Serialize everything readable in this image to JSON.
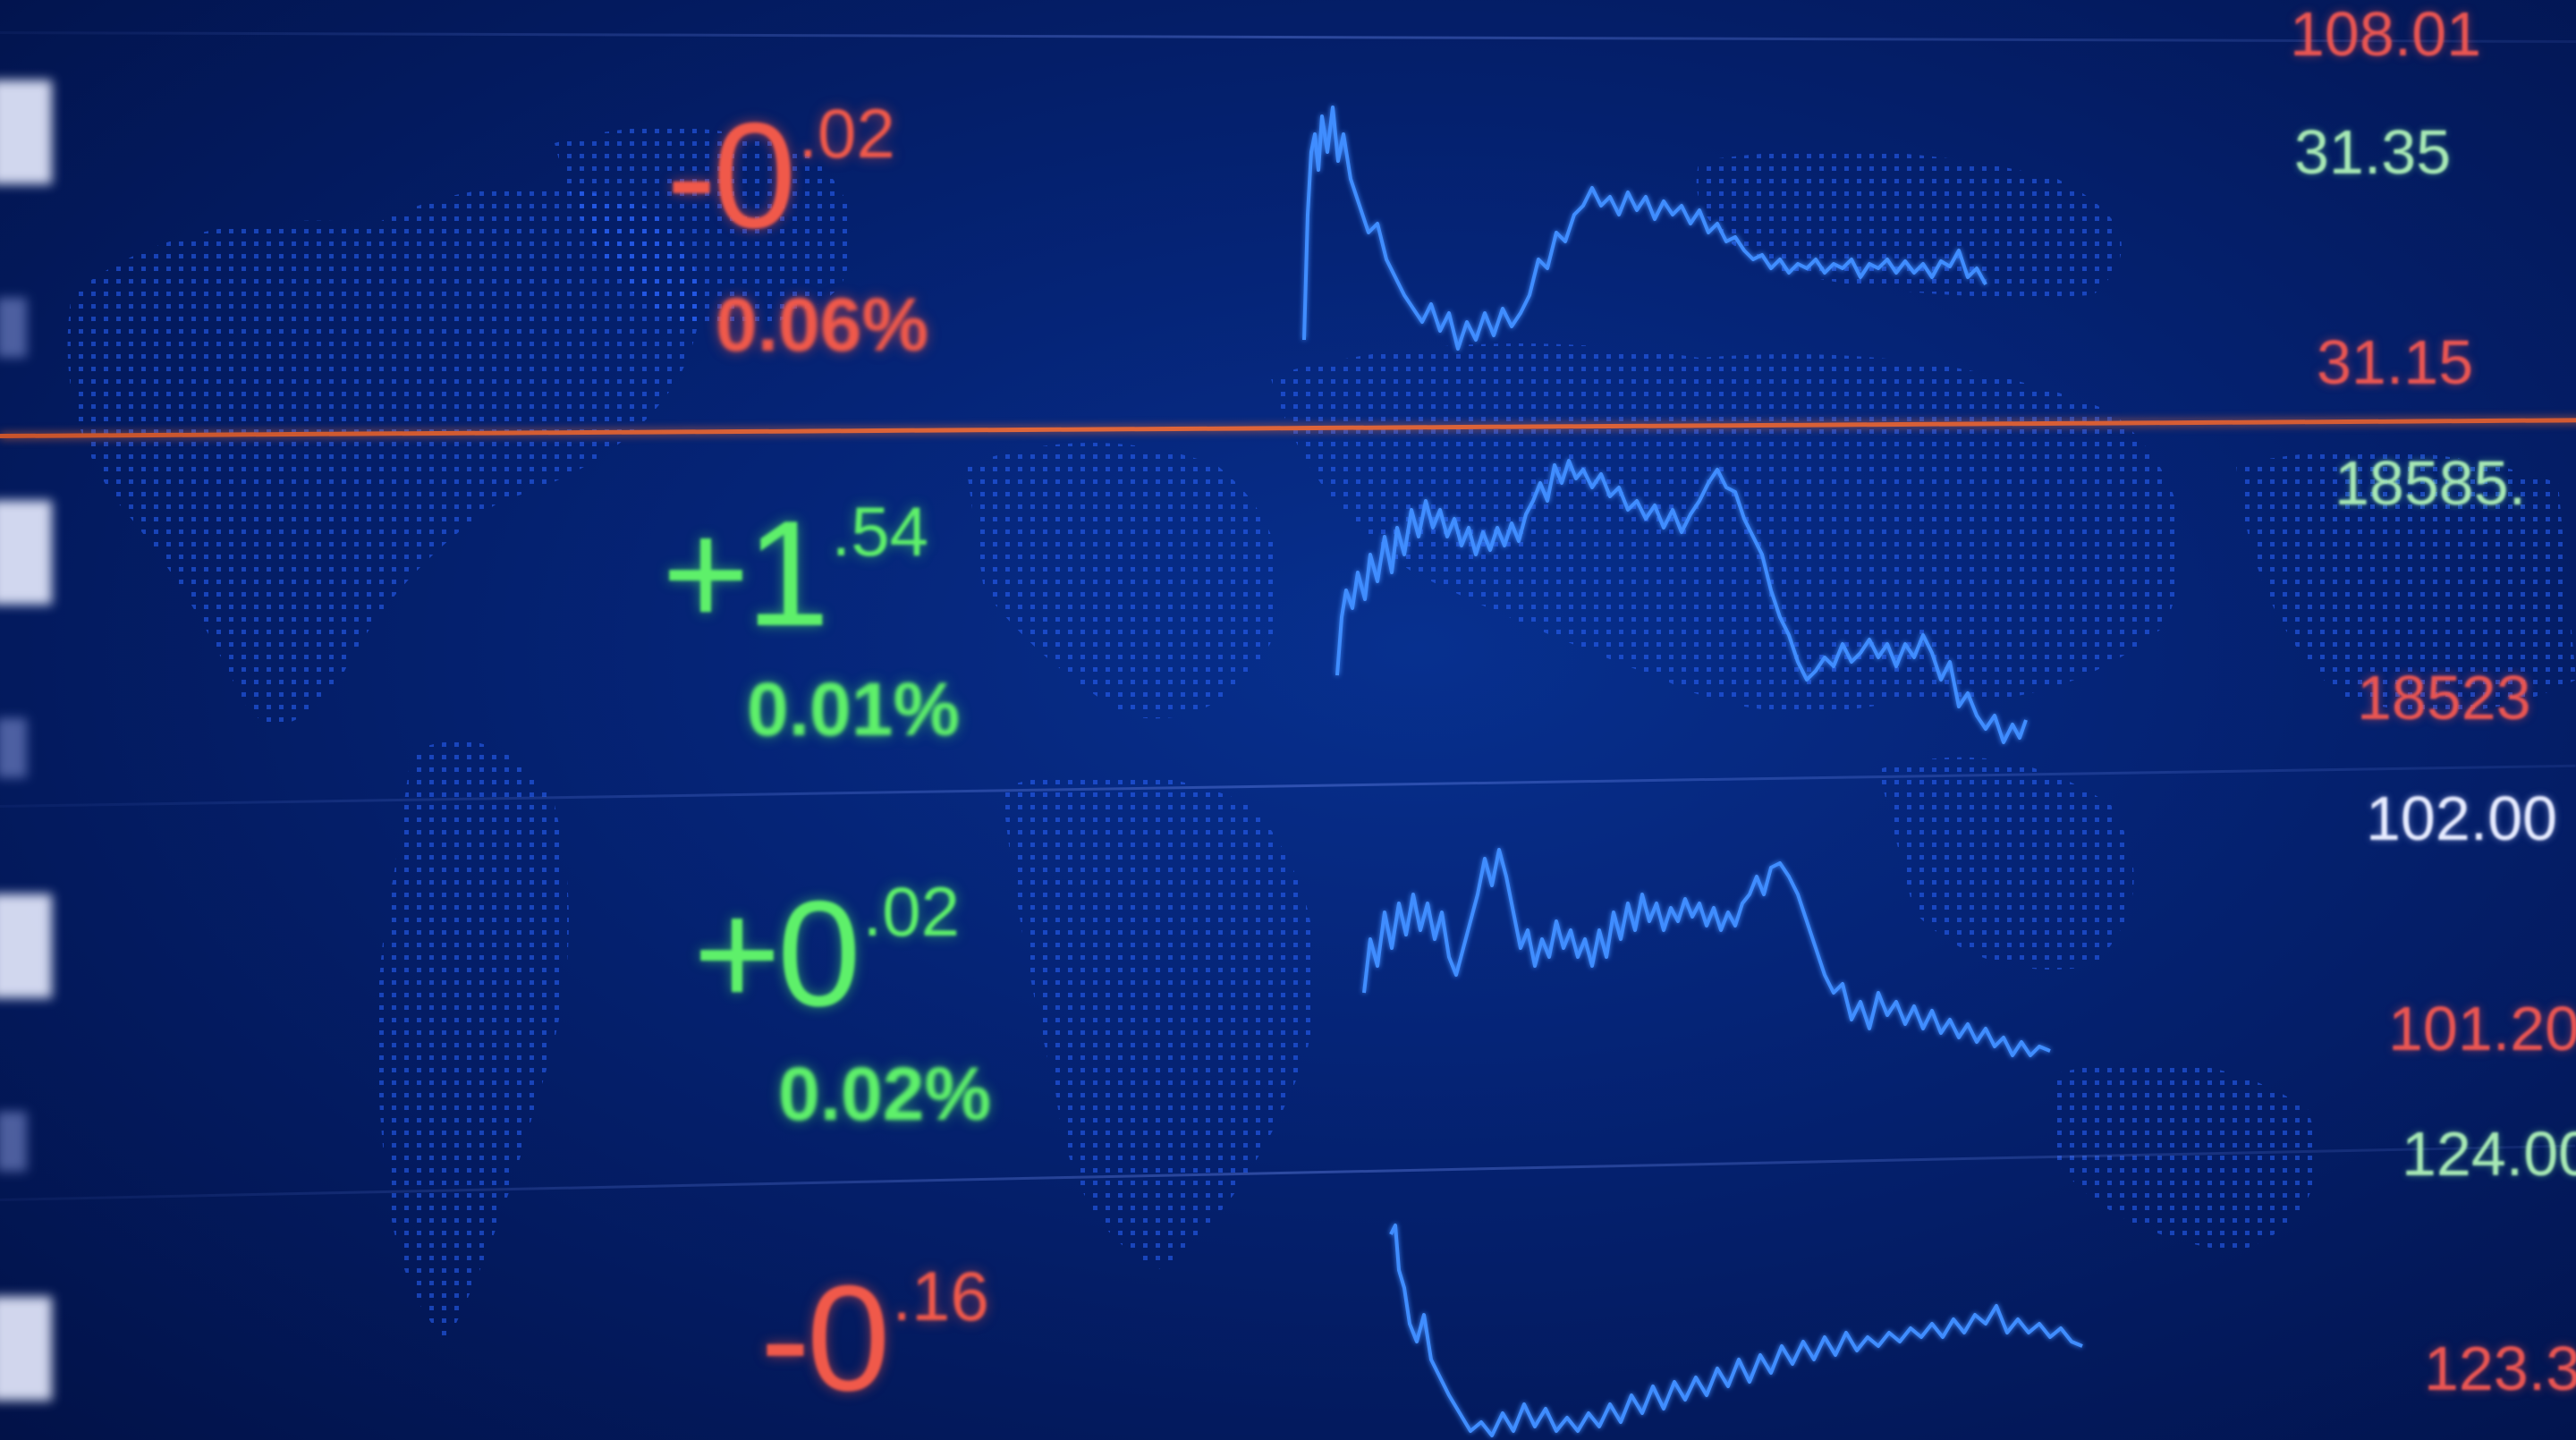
{
  "rows": [
    {
      "change_int": "-0",
      "change_dec": ".02",
      "percent": "0.06%",
      "direction": "down",
      "high": "31.35",
      "low": "31.15",
      "top_price": "108.01"
    },
    {
      "change_int": "+1",
      "change_dec": ".54",
      "percent": "0.01%",
      "direction": "up",
      "high": "18585.",
      "low": "18523"
    },
    {
      "change_int": "+0",
      "change_dec": ".02",
      "percent": "0.02%",
      "direction": "up",
      "high": "102.00",
      "low": "101.20"
    },
    {
      "change_int": "-0",
      "change_dec": ".16",
      "direction": "down",
      "high": "124.00",
      "low": "123.3"
    }
  ],
  "colors": {
    "background": "#031a63",
    "up": "#5ef06a",
    "down": "#f0594a",
    "sparkline": "#3f8dff",
    "highlight": "#e0663a"
  }
}
